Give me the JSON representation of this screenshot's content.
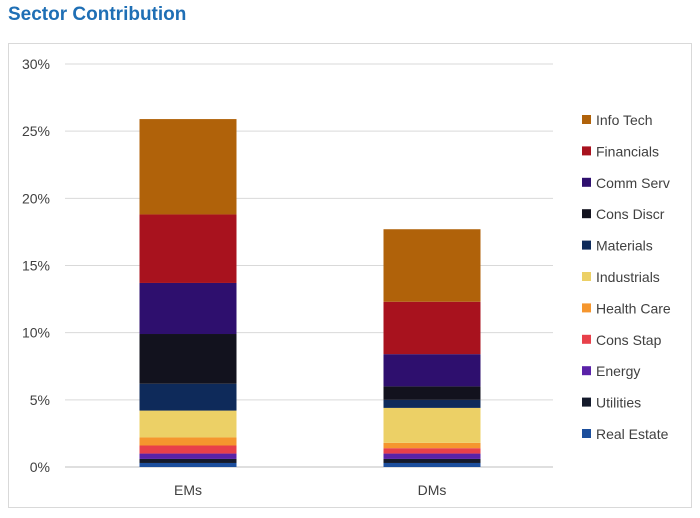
{
  "title": "Sector Contribution",
  "chart_data": {
    "type": "bar",
    "stacked": true,
    "categories": [
      "EMs",
      "DMs"
    ],
    "ylim": [
      0,
      30
    ],
    "yticks": [
      "0%",
      "5%",
      "10%",
      "15%",
      "20%",
      "25%",
      "30%"
    ],
    "grid": true,
    "legend_position": "right",
    "series": [
      {
        "name": "Real Estate",
        "color": "#1c4e9c",
        "values": [
          0.3,
          0.3
        ]
      },
      {
        "name": "Utilities",
        "color": "#141a2b",
        "values": [
          0.3,
          0.3
        ]
      },
      {
        "name": "Energy",
        "color": "#5a22a8",
        "values": [
          0.4,
          0.4
        ]
      },
      {
        "name": "Cons Stap",
        "color": "#e8404a",
        "values": [
          0.6,
          0.4
        ]
      },
      {
        "name": "Health Care",
        "color": "#f5962e",
        "values": [
          0.6,
          0.4
        ]
      },
      {
        "name": "Industrials",
        "color": "#ecd066",
        "values": [
          2.0,
          2.6
        ]
      },
      {
        "name": "Materials",
        "color": "#0e2a5a",
        "values": [
          2.0,
          0.6
        ]
      },
      {
        "name": "Cons Discr",
        "color": "#12121e",
        "values": [
          3.7,
          1.0
        ]
      },
      {
        "name": "Comm Serv",
        "color": "#2e0f6e",
        "values": [
          3.8,
          2.4
        ]
      },
      {
        "name": "Financials",
        "color": "#a8121e",
        "values": [
          5.1,
          3.9
        ]
      },
      {
        "name": "Info Tech",
        "color": "#b0620a",
        "values": [
          7.1,
          5.4
        ]
      }
    ]
  }
}
